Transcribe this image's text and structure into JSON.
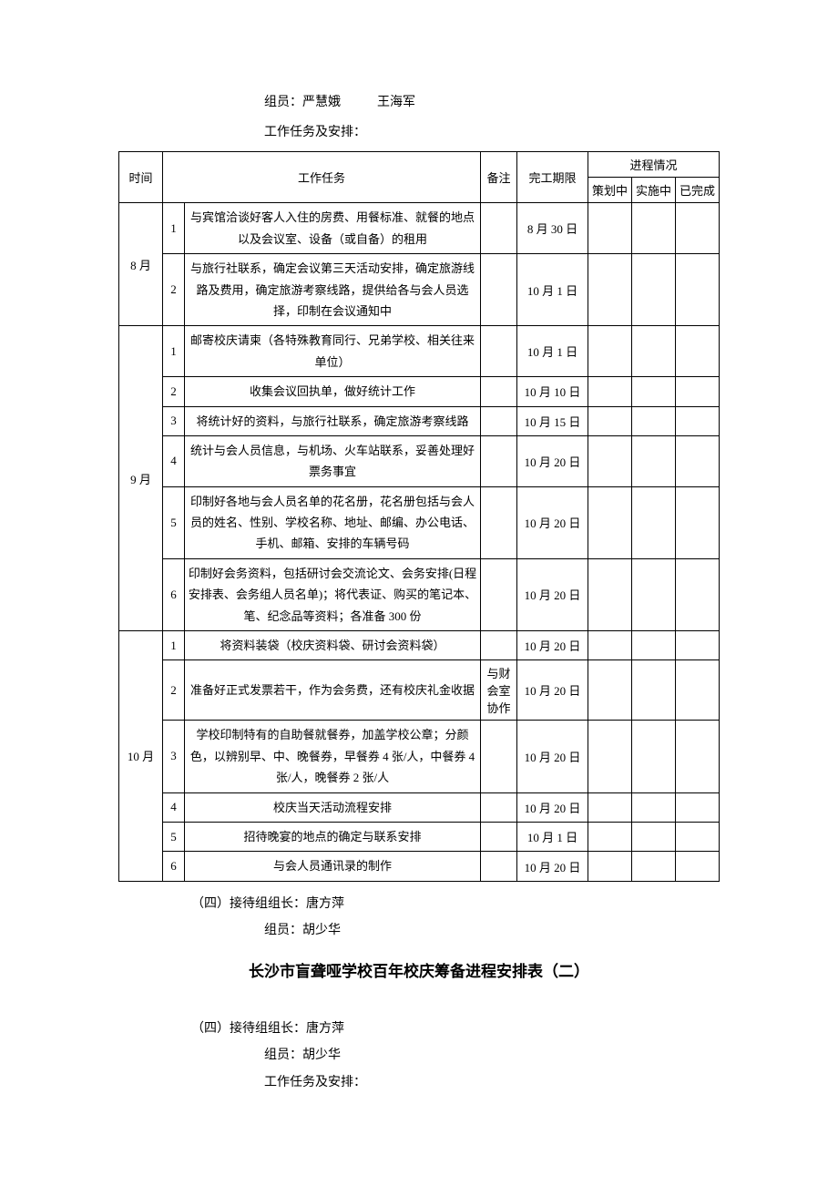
{
  "top": {
    "members_label": "组员：",
    "member1": "严慧娥",
    "member2": "王海军",
    "tasks_label": "工作任务及安排："
  },
  "table": {
    "headers": {
      "time": "时间",
      "task": "工作任务",
      "remark": "备注",
      "deadline": "完工期限",
      "progress": "进程情况",
      "planning": "策划中",
      "implementing": "实施中",
      "done": "已完成"
    },
    "groups": [
      {
        "time": "8 月",
        "rows": [
          {
            "idx": "1",
            "task": "与宾馆洽谈好客人入住的房费、用餐标准、就餐的地点以及会议室、设备（或自备）的租用",
            "remark": "",
            "deadline": "8 月 30 日"
          },
          {
            "idx": "2",
            "task": "与旅行社联系，确定会议第三天活动安排，确定旅游线路及费用，确定旅游考察线路，提供给各与会人员选择，印制在会议通知中",
            "remark": "",
            "deadline": "10 月 1 日"
          }
        ]
      },
      {
        "time": "9 月",
        "rows": [
          {
            "idx": "1",
            "task": "邮寄校庆请柬（各特殊教育同行、兄弟学校、相关往来单位）",
            "remark": "",
            "deadline": "10 月 1 日"
          },
          {
            "idx": "2",
            "task": "收集会议回执单，做好统计工作",
            "remark": "",
            "deadline": "10 月 10 日"
          },
          {
            "idx": "3",
            "task": "将统计好的资料，与旅行社联系，确定旅游考察线路",
            "remark": "",
            "deadline": "10 月 15 日"
          },
          {
            "idx": "4",
            "task": "统计与会人员信息，与机场、火车站联系，妥善处理好票务事宜",
            "remark": "",
            "deadline": "10 月 20 日"
          },
          {
            "idx": "5",
            "task": "印制好各地与会人员名单的花名册，花名册包括与会人员的姓名、性别、学校名称、地址、邮编、办公电话、手机、邮箱、安排的车辆号码",
            "remark": "",
            "deadline": "10 月 20 日"
          },
          {
            "idx": "6",
            "task": "印制好会务资料，包括研讨会交流论文、会务安排(日程安排表、会务组人员名单)；将代表证、购买的笔记本、笔、纪念品等资料；各准备 300 份",
            "remark": "",
            "deadline": "10 月 20 日"
          }
        ]
      },
      {
        "time": "10 月",
        "rows": [
          {
            "idx": "1",
            "task": "将资料装袋（校庆资料袋、研讨会资料袋）",
            "remark": "",
            "deadline": "10 月 20 日"
          },
          {
            "idx": "2",
            "task": "准备好正式发票若干，作为会务费，还有校庆礼金收据",
            "remark": "与财会室协作",
            "deadline": "10 月 20 日"
          },
          {
            "idx": "3",
            "task": "学校印制特有的自助餐就餐券，加盖学校公章；分颜色，以辨别早、中、晚餐券，早餐券 4 张/人，中餐券 4 张/人，晚餐券 2 张/人",
            "remark": "",
            "deadline": "10 月 20 日"
          },
          {
            "idx": "4",
            "task": "校庆当天活动流程安排",
            "remark": "",
            "deadline": "10 月 20 日"
          },
          {
            "idx": "5",
            "task": "招待晚宴的地点的确定与联系安排",
            "remark": "",
            "deadline": "10 月 1 日"
          },
          {
            "idx": "6",
            "task": "与会人员通讯录的制作",
            "remark": "",
            "deadline": "10 月 20 日"
          }
        ]
      }
    ]
  },
  "after_table": {
    "leader_line": "（四）接待组组长：唐方萍",
    "members_line": "组员：胡少华"
  },
  "title2": "长沙市盲聋哑学校百年校庆筹备进程安排表（二）",
  "section2": {
    "leader_line": "（四）接待组组长：唐方萍",
    "members_line": "组员：胡少华",
    "tasks_label": "工作任务及安排："
  }
}
